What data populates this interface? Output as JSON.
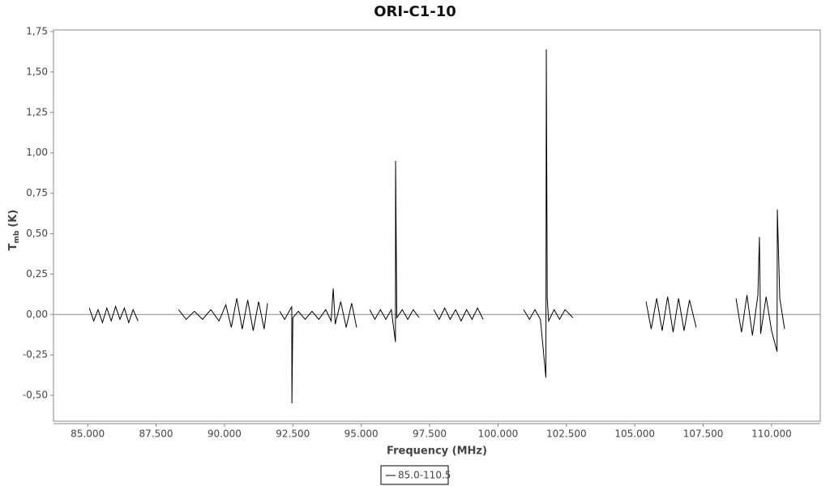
{
  "chart_data": {
    "type": "line",
    "title": "ORI-C1-10",
    "x_label": "Frequency (MHz)",
    "y_label": {
      "main": "T",
      "sub": "mb",
      "unit": "(K)"
    },
    "xlim": [
      83750,
      111780
    ],
    "ylim": [
      -0.66,
      1.76
    ],
    "xticks": [
      {
        "value": 85000,
        "label": "85.000"
      },
      {
        "value": 87500,
        "label": "87.500"
      },
      {
        "value": 90000,
        "label": "90.000"
      },
      {
        "value": 92500,
        "label": "92.500"
      },
      {
        "value": 95000,
        "label": "95.000"
      },
      {
        "value": 97500,
        "label": "97.500"
      },
      {
        "value": 100000,
        "label": "100.000"
      },
      {
        "value": 102500,
        "label": "102.500"
      },
      {
        "value": 105000,
        "label": "105.000"
      },
      {
        "value": 107500,
        "label": "107.500"
      },
      {
        "value": 110000,
        "label": "110.000"
      }
    ],
    "yticks": [
      {
        "value": -0.5,
        "label": "-0,50"
      },
      {
        "value": -0.25,
        "label": "-0,25"
      },
      {
        "value": 0,
        "label": "0,00"
      },
      {
        "value": 0.25,
        "label": "0,25"
      },
      {
        "value": 0.5,
        "label": "0,50"
      },
      {
        "value": 0.75,
        "label": "0,75"
      },
      {
        "value": 1,
        "label": "1,00"
      },
      {
        "value": 1.25,
        "label": "1,25"
      },
      {
        "value": 1.5,
        "label": "1,50"
      },
      {
        "value": 1.75,
        "label": "1,75"
      }
    ],
    "x": [
      85060,
      85220,
      85380,
      85540,
      85700,
      85860,
      86020,
      86180,
      86340,
      86500,
      86660,
      86840,
      87500,
      88320,
      88600,
      88900,
      89200,
      89500,
      89800,
      90050,
      90250,
      90450,
      90650,
      90850,
      91050,
      91250,
      91450,
      91575,
      91800,
      92020,
      92200,
      92400,
      92460,
      92465,
      92500,
      92700,
      92950,
      93200,
      93450,
      93700,
      93900,
      93975,
      94050,
      94250,
      94450,
      94650,
      94830,
      95000,
      95310,
      95500,
      95700,
      95900,
      96100,
      96250,
      96255,
      96300,
      96500,
      96700,
      96900,
      97115,
      97400,
      97650,
      97850,
      98050,
      98250,
      98450,
      98650,
      98850,
      99050,
      99250,
      99455,
      100200,
      100935,
      101150,
      101350,
      101550,
      101750,
      101765,
      101800,
      101850,
      102050,
      102250,
      102450,
      102740,
      104000,
      105410,
      105600,
      105800,
      106000,
      106200,
      106400,
      106600,
      106800,
      107000,
      107245,
      108000,
      108700,
      108900,
      109100,
      109300,
      109500,
      109555,
      109600,
      109800,
      110000,
      110200,
      110210,
      110300,
      110475
    ],
    "series": [
      {
        "name": "85.0-110.5",
        "color": "#000000",
        "values": [
          0.04,
          -0.04,
          0.03,
          -0.05,
          0.04,
          -0.04,
          0.05,
          -0.03,
          0.04,
          -0.05,
          0.03,
          -0.04,
          null,
          0.03,
          -0.03,
          0.02,
          -0.03,
          0.03,
          -0.04,
          0.06,
          -0.08,
          0.1,
          -0.09,
          0.09,
          -0.1,
          0.08,
          -0.09,
          0.07,
          null,
          0.02,
          -0.03,
          0.03,
          0.05,
          -0.55,
          -0.02,
          0.02,
          -0.03,
          0.02,
          -0.03,
          0.03,
          -0.04,
          0.16,
          -0.06,
          0.08,
          -0.08,
          0.07,
          -0.08,
          null,
          0.03,
          -0.03,
          0.03,
          -0.03,
          0.03,
          -0.17,
          0.95,
          -0.02,
          0.03,
          -0.03,
          0.03,
          -0.02,
          null,
          0.03,
          -0.03,
          0.04,
          -0.03,
          0.03,
          -0.04,
          0.03,
          -0.03,
          0.04,
          -0.03,
          null,
          0.03,
          -0.03,
          0.03,
          -0.03,
          -0.39,
          1.64,
          0.1,
          -0.04,
          0.03,
          -0.03,
          0.03,
          -0.02,
          null,
          0.08,
          -0.09,
          0.1,
          -0.1,
          0.11,
          -0.11,
          0.1,
          -0.1,
          0.09,
          -0.08,
          null,
          0.1,
          -0.11,
          0.12,
          -0.13,
          0.12,
          0.48,
          -0.12,
          0.11,
          -0.1,
          -0.23,
          0.65,
          0.1,
          -0.09
        ]
      }
    ]
  }
}
